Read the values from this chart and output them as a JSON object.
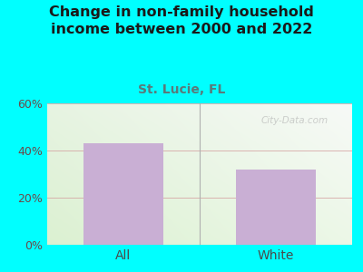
{
  "title": "Change in non-family household\nincome between 2000 and 2022",
  "subtitle": "St. Lucie, FL",
  "categories": [
    "All",
    "White"
  ],
  "values": [
    43,
    32
  ],
  "bar_color": "#c9afd4",
  "title_color": "#1a1a1a",
  "subtitle_color": "#5a7a7a",
  "ytick_color": "#6b4a4a",
  "xtick_color": "#4a4a4a",
  "ylim": [
    0,
    60
  ],
  "yticks": [
    0,
    20,
    40,
    60
  ],
  "ytick_labels": [
    "0%",
    "20%",
    "40%",
    "60%"
  ],
  "bg_outer_color": "#00ffff",
  "watermark": "City-Data.com",
  "title_fontsize": 11.5,
  "subtitle_fontsize": 10,
  "bar_width": 0.52
}
